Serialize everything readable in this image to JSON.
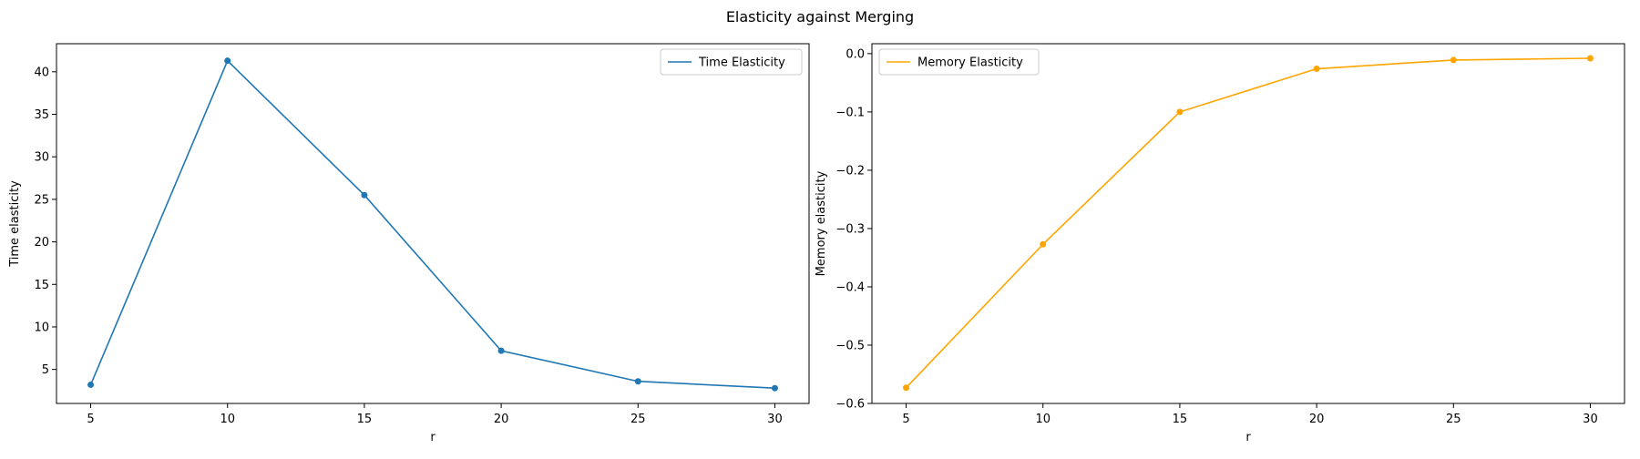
{
  "figure": {
    "title": "Elasticity against Merging"
  },
  "chart_data": [
    {
      "type": "line",
      "title": "",
      "xlabel": "r",
      "ylabel": "Time elasticity",
      "x": [
        5,
        10,
        15,
        20,
        25,
        30
      ],
      "series": [
        {
          "name": "Time Elasticity",
          "values": [
            3.2,
            41.3,
            25.5,
            7.2,
            3.6,
            2.8
          ],
          "color": "#1f77b4"
        }
      ],
      "xlim": [
        3.75,
        31.25
      ],
      "ylim": [
        1.0,
        43.3
      ],
      "xticks": [
        5,
        10,
        15,
        20,
        25,
        30
      ],
      "xtick_labels": [
        "5",
        "10",
        "15",
        "20",
        "25",
        "30"
      ],
      "yticks": [
        5,
        10,
        15,
        20,
        25,
        30,
        35,
        40
      ],
      "ytick_labels": [
        "5",
        "10",
        "15",
        "20",
        "25",
        "30",
        "35",
        "40"
      ],
      "grid": false,
      "legend": "upper right",
      "markers": true
    },
    {
      "type": "line",
      "title": "",
      "xlabel": "r",
      "ylabel": "Memory elasticity",
      "x": [
        5,
        10,
        15,
        20,
        25,
        30
      ],
      "series": [
        {
          "name": "Memory Elasticity",
          "values": [
            -0.573,
            -0.327,
            -0.1,
            -0.026,
            -0.011,
            -0.008
          ],
          "color": "#ffa500"
        }
      ],
      "xlim": [
        3.75,
        31.25
      ],
      "ylim": [
        -0.6,
        0.017
      ],
      "xticks": [
        5,
        10,
        15,
        20,
        25,
        30
      ],
      "xtick_labels": [
        "5",
        "10",
        "15",
        "20",
        "25",
        "30"
      ],
      "yticks": [
        -0.6,
        -0.5,
        -0.4,
        -0.3,
        -0.2,
        -0.1,
        0.0
      ],
      "ytick_labels": [
        "−0.6",
        "−0.5",
        "−0.4",
        "−0.3",
        "−0.2",
        "−0.1",
        "0.0"
      ],
      "grid": false,
      "legend": "upper left",
      "markers": true
    }
  ]
}
